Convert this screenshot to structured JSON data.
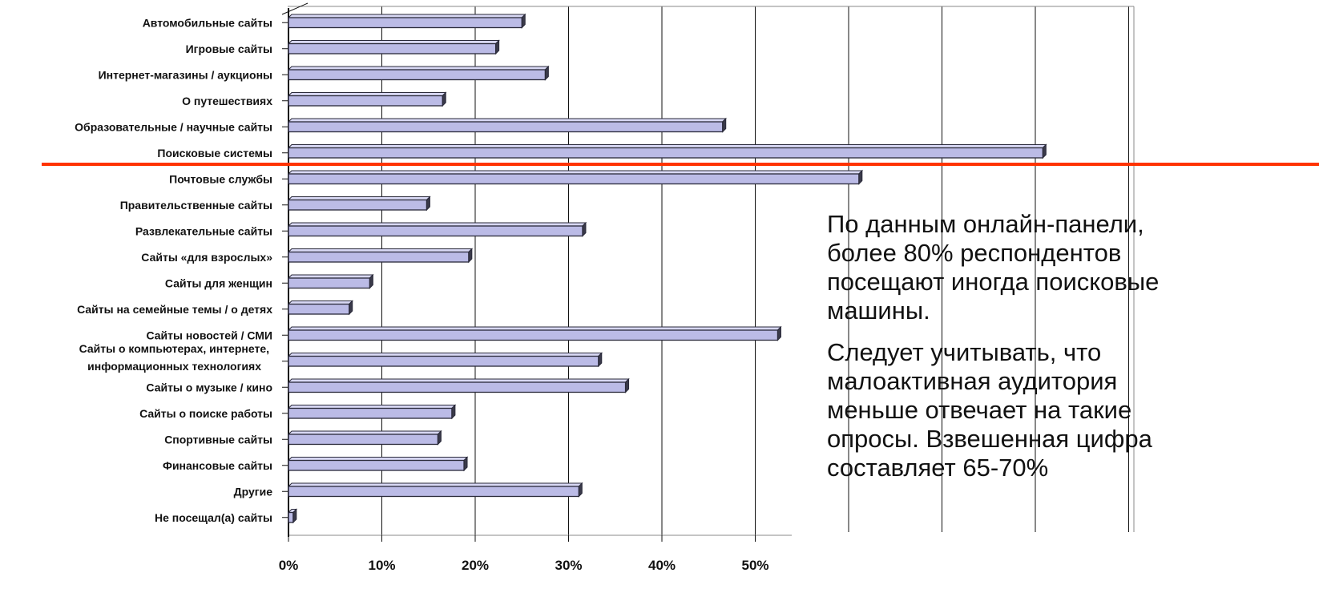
{
  "chart_data": {
    "type": "bar",
    "orientation": "horizontal",
    "categories": [
      "Автомобильные сайты",
      "Игровые сайты",
      "Интернет-магазины / аукционы",
      "О путешествиях",
      "Образовательные / научные сайты",
      "Поисковые системы",
      "Почтовые службы",
      "Правительственные сайты",
      "Развлекательные сайты",
      "Сайты «для взрослых»",
      "Сайты для женщин",
      "Сайты на семейные темы / о детях",
      "Сайты новостей / СМИ",
      "Сайты о компьютерах, интернете,\nинформационных технологиях",
      "Сайты о музыке / кино",
      "Сайты о поиске работы",
      "Спортивные сайты",
      "Финансовые сайты",
      "Другие",
      "Не посещал(а) сайты"
    ],
    "values": [
      25,
      22.2,
      27.5,
      16.5,
      46.5,
      80.8,
      61.1,
      14.8,
      31.5,
      19.3,
      8.7,
      6.5,
      52.4,
      33.2,
      36.1,
      17.5,
      16,
      18.8,
      31.1,
      0.5
    ],
    "unit": "%",
    "xlim": [
      0,
      90
    ],
    "xticks": [
      "0%",
      "10%",
      "20%",
      "30%",
      "40%",
      "50%"
    ],
    "grid": true,
    "bar_color": "#bbbbe6",
    "bar_edge_color": "#2a2a3a",
    "highlight_line_color": "#ff3300"
  },
  "annotation": {
    "paragraph1": "По данным онлайн-панели, более 80% респондентов посещают иногда поисковые машины.",
    "paragraph2": "Следует учитывать, что малоактивная аудитория меньше отвечает на такие опросы. Взвешенная цифра составляет 65-70%"
  }
}
